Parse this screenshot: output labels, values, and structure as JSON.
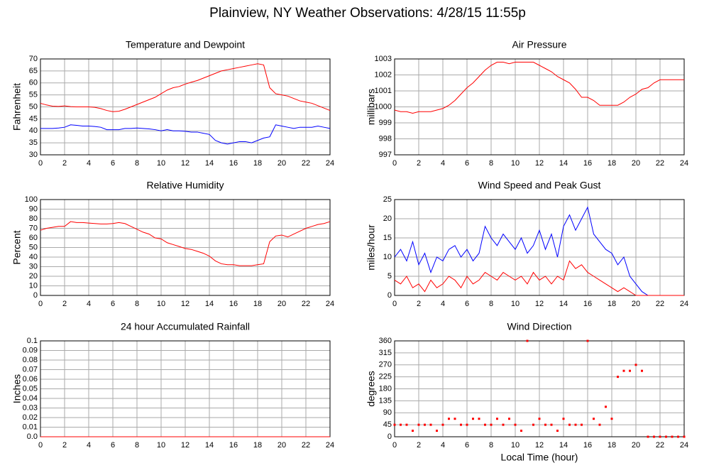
{
  "title": "Plainview, NY Weather Observations: 4/28/15 11:55p",
  "chart_data": [
    {
      "type": "line",
      "title": "Temperature and Dewpoint",
      "y_label": "Fahrenheit",
      "x": [
        0,
        0.5,
        1,
        1.5,
        2,
        2.5,
        3,
        3.5,
        4,
        4.5,
        5,
        5.5,
        6,
        6.5,
        7,
        7.5,
        8,
        8.5,
        9,
        9.5,
        10,
        10.5,
        11,
        11.5,
        12,
        12.5,
        13,
        13.5,
        14,
        14.5,
        15,
        15.5,
        16,
        16.5,
        17,
        17.5,
        18,
        18.5,
        19,
        19.5,
        20,
        20.5,
        21,
        21.5,
        22,
        22.5,
        23,
        23.5,
        24
      ],
      "xlim": [
        0,
        24
      ],
      "xticks": [
        0,
        2,
        4,
        6,
        8,
        10,
        12,
        14,
        16,
        18,
        20,
        22,
        24
      ],
      "ylim": [
        30,
        70
      ],
      "yticks": [
        30,
        35,
        40,
        45,
        50,
        55,
        60,
        65,
        70
      ],
      "grid": true,
      "series": [
        {
          "color": "#ff0000",
          "values": [
            51.5,
            50.8,
            50.3,
            50.2,
            50.4,
            50.1,
            50,
            50,
            50,
            49.8,
            49.3,
            48.5,
            48,
            48.2,
            49,
            50,
            51,
            52,
            53,
            54,
            55.5,
            57,
            58,
            58.5,
            59.5,
            60.3,
            61,
            62,
            63,
            64,
            65,
            65.5,
            66,
            66.5,
            67,
            67.5,
            68,
            67.5,
            58,
            55.5,
            55,
            54.5,
            53.5,
            52.5,
            52,
            51.5,
            50.5,
            49.5,
            48.5
          ]
        },
        {
          "color": "#0000ff",
          "values": [
            41,
            41,
            41,
            41.2,
            41.5,
            42.5,
            42.3,
            42,
            42,
            41.8,
            41.5,
            40.5,
            40.5,
            40.5,
            41,
            41,
            41.2,
            41,
            40.8,
            40.5,
            40,
            40.5,
            40,
            40,
            39.8,
            39.5,
            39.5,
            39,
            38.5,
            36,
            35,
            34.5,
            35,
            35.5,
            35.5,
            35,
            36,
            37,
            37.5,
            42.5,
            42,
            41.5,
            41,
            41.5,
            41.5,
            41.5,
            42,
            41.5,
            41
          ]
        }
      ]
    },
    {
      "type": "line",
      "title": "Air Pressure",
      "y_label": "millibars",
      "x": [
        0,
        0.5,
        1,
        1.5,
        2,
        2.5,
        3,
        3.5,
        4,
        4.5,
        5,
        5.5,
        6,
        6.5,
        7,
        7.5,
        8,
        8.5,
        9,
        9.5,
        10,
        10.5,
        11,
        11.5,
        12,
        12.5,
        13,
        13.5,
        14,
        14.5,
        15,
        15.5,
        16,
        16.5,
        17,
        17.5,
        18,
        18.5,
        19,
        19.5,
        20,
        20.5,
        21,
        21.5,
        22,
        22.5,
        23,
        23.5,
        24
      ],
      "xlim": [
        0,
        24
      ],
      "xticks": [
        0,
        2,
        4,
        6,
        8,
        10,
        12,
        14,
        16,
        18,
        20,
        22,
        24
      ],
      "ylim": [
        997,
        1003
      ],
      "yticks": [
        997,
        998,
        999,
        1000,
        1001,
        1002,
        1003
      ],
      "grid": true,
      "series": [
        {
          "color": "#ff0000",
          "values": [
            999.8,
            999.7,
            999.7,
            999.6,
            999.7,
            999.7,
            999.7,
            999.8,
            999.9,
            1000.1,
            1000.4,
            1000.8,
            1001.2,
            1001.5,
            1001.9,
            1002.3,
            1002.6,
            1002.8,
            1002.8,
            1002.7,
            1002.8,
            1002.8,
            1002.8,
            1002.8,
            1002.6,
            1002.4,
            1002.2,
            1001.9,
            1001.7,
            1001.5,
            1001.1,
            1000.6,
            1000.6,
            1000.4,
            1000.1,
            1000.1,
            1000.1,
            1000.1,
            1000.3,
            1000.6,
            1000.8,
            1001.1,
            1001.2,
            1001.5,
            1001.7,
            1001.7,
            1001.7,
            1001.7,
            1001.7
          ]
        }
      ]
    },
    {
      "type": "line",
      "title": "Relative Humidity",
      "y_label": "Percent",
      "x": [
        0,
        0.5,
        1,
        1.5,
        2,
        2.5,
        3,
        3.5,
        4,
        4.5,
        5,
        5.5,
        6,
        6.5,
        7,
        7.5,
        8,
        8.5,
        9,
        9.5,
        10,
        10.5,
        11,
        11.5,
        12,
        12.5,
        13,
        13.5,
        14,
        14.5,
        15,
        15.5,
        16,
        16.5,
        17,
        17.5,
        18,
        18.5,
        19,
        19.5,
        20,
        20.5,
        21,
        21.5,
        22,
        22.5,
        23,
        23.5,
        24
      ],
      "xlim": [
        0,
        24
      ],
      "xticks": [
        0,
        2,
        4,
        6,
        8,
        10,
        12,
        14,
        16,
        18,
        20,
        22,
        24
      ],
      "ylim": [
        0,
        100
      ],
      "yticks": [
        0,
        10,
        20,
        30,
        40,
        50,
        60,
        70,
        80,
        90,
        100
      ],
      "grid": true,
      "series": [
        {
          "color": "#ff0000",
          "values": [
            68,
            70,
            71,
            72,
            72,
            77,
            76,
            76,
            75.5,
            75,
            74.5,
            74.5,
            75,
            76,
            75,
            72,
            69,
            66,
            64,
            60,
            59,
            55,
            53,
            51,
            49,
            48,
            46,
            44,
            41,
            36,
            33,
            32,
            32,
            31,
            31,
            31,
            32,
            33,
            56,
            62,
            63,
            61,
            64,
            67,
            70,
            72,
            74,
            75,
            77
          ]
        }
      ]
    },
    {
      "type": "line",
      "title": "Wind Speed and Peak Gust",
      "y_label": "miles/hour",
      "x": [
        0,
        0.5,
        1,
        1.5,
        2,
        2.5,
        3,
        3.5,
        4,
        4.5,
        5,
        5.5,
        6,
        6.5,
        7,
        7.5,
        8,
        8.5,
        9,
        9.5,
        10,
        10.5,
        11,
        11.5,
        12,
        12.5,
        13,
        13.5,
        14,
        14.5,
        15,
        15.5,
        16,
        16.5,
        17,
        17.5,
        18,
        18.5,
        19,
        19.5,
        20,
        20.5,
        21,
        21.5,
        22,
        22.5,
        23,
        23.5,
        24
      ],
      "xlim": [
        0,
        24
      ],
      "xticks": [
        0,
        2,
        4,
        6,
        8,
        10,
        12,
        14,
        16,
        18,
        20,
        22,
        24
      ],
      "ylim": [
        0,
        25
      ],
      "yticks": [
        0,
        5,
        10,
        15,
        20,
        25
      ],
      "grid": true,
      "series": [
        {
          "color": "#0000ff",
          "values": [
            10,
            12,
            9,
            14,
            8,
            11,
            6,
            10,
            9,
            12,
            13,
            10,
            12,
            9,
            11,
            18,
            15,
            13,
            16,
            14,
            12,
            15,
            11,
            13,
            17,
            12,
            16,
            10,
            18,
            21,
            17,
            20,
            23,
            16,
            14,
            12,
            11,
            8,
            10,
            5,
            3,
            1,
            0,
            0,
            0,
            0,
            0,
            0,
            0
          ]
        },
        {
          "color": "#ff0000",
          "values": [
            4,
            3,
            5,
            2,
            3,
            1,
            4,
            2,
            3,
            5,
            4,
            2,
            5,
            3,
            4,
            6,
            5,
            4,
            6,
            5,
            4,
            5,
            3,
            6,
            4,
            5,
            3,
            5,
            4,
            9,
            7,
            8,
            6,
            5,
            4,
            3,
            2,
            1,
            2,
            1,
            0,
            0,
            0,
            0,
            0,
            0,
            0,
            0,
            0
          ]
        }
      ]
    },
    {
      "type": "line",
      "title": "24 hour Accumulated Rainfall",
      "y_label": "Inches",
      "x": [
        0,
        24
      ],
      "xlim": [
        0,
        24
      ],
      "xticks": [
        0,
        2,
        4,
        6,
        8,
        10,
        12,
        14,
        16,
        18,
        20,
        22,
        24
      ],
      "ylim": [
        0,
        0.1
      ],
      "yticks": [
        {
          "value": 0,
          "label": "0.0"
        },
        0.01,
        0.02,
        0.03,
        0.04,
        0.05,
        0.06,
        0.07,
        0.08,
        0.09,
        0.1
      ],
      "grid": true,
      "series": [
        {
          "color": "#ff0000",
          "values": [
            0,
            0
          ]
        }
      ]
    },
    {
      "type": "scatter",
      "title": "Wind Direction",
      "y_label": "degrees",
      "x_label": "Local Time (hour)",
      "x": [
        0,
        0.5,
        1,
        1.5,
        2,
        2.5,
        3,
        3.5,
        4,
        4.5,
        5,
        5.5,
        6,
        6.5,
        7,
        7.5,
        8,
        8.5,
        9,
        9.5,
        10,
        10.5,
        11,
        11.5,
        12,
        12.5,
        13,
        13.5,
        14,
        14.5,
        15,
        15.5,
        16,
        16.5,
        17,
        17.5,
        18,
        18.5,
        19,
        19.5,
        20,
        20.5,
        21,
        21.5,
        22,
        22.5,
        23,
        23.5,
        24
      ],
      "xlim": [
        0,
        24
      ],
      "xticks": [
        0,
        2,
        4,
        6,
        8,
        10,
        12,
        14,
        16,
        18,
        20,
        22,
        24
      ],
      "ylim": [
        0,
        360
      ],
      "yticks": [
        0,
        45,
        90,
        135,
        180,
        225,
        270,
        315,
        360
      ],
      "grid": true,
      "series": [
        {
          "color": "#ff0000",
          "values": [
            45,
            45,
            45,
            22.5,
            45,
            45,
            45,
            22.5,
            45,
            67.5,
            67.5,
            45,
            45,
            67.5,
            67.5,
            45,
            45,
            67.5,
            45,
            67.5,
            45,
            22.5,
            360,
            45,
            67.5,
            45,
            45,
            22.5,
            67.5,
            45,
            45,
            45,
            360,
            67.5,
            45,
            112.5,
            67.5,
            225,
            247.5,
            247.5,
            270,
            247.5,
            0,
            0,
            0,
            0,
            0,
            0,
            0
          ]
        }
      ]
    }
  ]
}
